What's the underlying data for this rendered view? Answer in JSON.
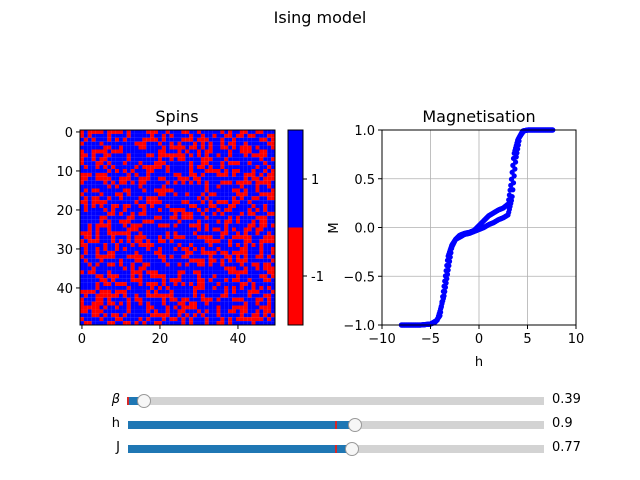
{
  "figure": {
    "suptitle": "Ising model"
  },
  "chart_data": [
    {
      "type": "heatmap",
      "title": "Spins",
      "xticks": [
        "0",
        "20",
        "40"
      ],
      "yticks": [
        "0",
        "10",
        "20",
        "30",
        "40"
      ],
      "grid_size": 50,
      "values_legend": [
        -1,
        1
      ],
      "colormap": {
        "-1": "#ff0000",
        "1": "#0000ff"
      },
      "colorbar_ticks": [
        "1",
        "-1"
      ],
      "fraction_positive": 0.62
    },
    {
      "type": "scatter",
      "title": "Magnetisation",
      "xlabel": "h",
      "ylabel": "M",
      "xlim": [
        -10,
        10
      ],
      "ylim": [
        -1,
        1
      ],
      "xticks": [
        "−10",
        "−5",
        "0",
        "5",
        "10"
      ],
      "yticks": [
        "1.0",
        "0.5",
        "0.0",
        "−0.5",
        "−1.0"
      ],
      "grid": true,
      "marker_color": "#0000ff",
      "upper_branch": {
        "x": [
          -8,
          -6,
          -5,
          -4.5,
          -4,
          -3.6,
          -3.2,
          -2.8,
          -2.4,
          -2,
          -1.5,
          -1,
          -0.5,
          0,
          0.5,
          1,
          1.5,
          2,
          2.5,
          3,
          3.3,
          3.6,
          4,
          4.5,
          5,
          6,
          7.6
        ],
        "y": [
          -1,
          -1,
          -0.99,
          -0.97,
          -0.9,
          -0.6,
          -0.3,
          -0.18,
          -0.12,
          -0.08,
          -0.06,
          -0.05,
          -0.03,
          0.02,
          0.07,
          0.12,
          0.15,
          0.18,
          0.2,
          0.24,
          0.45,
          0.75,
          0.9,
          0.99,
          1,
          1,
          1
        ]
      },
      "lower_branch": {
        "x": [
          -8,
          -6,
          -5,
          -4.3,
          -4,
          -3.6,
          -3.2,
          -2.8,
          -2.4,
          -2,
          -1.5,
          -1,
          -0.5,
          0,
          0.5,
          1,
          1.5,
          2,
          2.5,
          3,
          3.4,
          3.8,
          4.2,
          4.6,
          5,
          6,
          7.6
        ],
        "y": [
          -1,
          -1,
          -0.99,
          -0.95,
          -0.85,
          -0.7,
          -0.45,
          -0.2,
          -0.12,
          -0.1,
          -0.07,
          -0.06,
          -0.04,
          -0.02,
          0.0,
          0.03,
          0.05,
          0.08,
          0.1,
          0.13,
          0.3,
          0.7,
          0.93,
          0.99,
          1,
          1,
          1
        ]
      }
    }
  ],
  "sliders": [
    {
      "name": "beta",
      "label": "β",
      "value_text": "0.39",
      "value": 0.39,
      "min": 0,
      "max": 10,
      "initial": 0
    },
    {
      "name": "h",
      "label": "h",
      "value_text": "0.9",
      "value": 0.9,
      "min": -10,
      "max": 10,
      "initial": 0
    },
    {
      "name": "j",
      "label": "J",
      "value_text": "0.77",
      "value": 0.77,
      "min": -10,
      "max": 10,
      "initial": 0
    }
  ]
}
